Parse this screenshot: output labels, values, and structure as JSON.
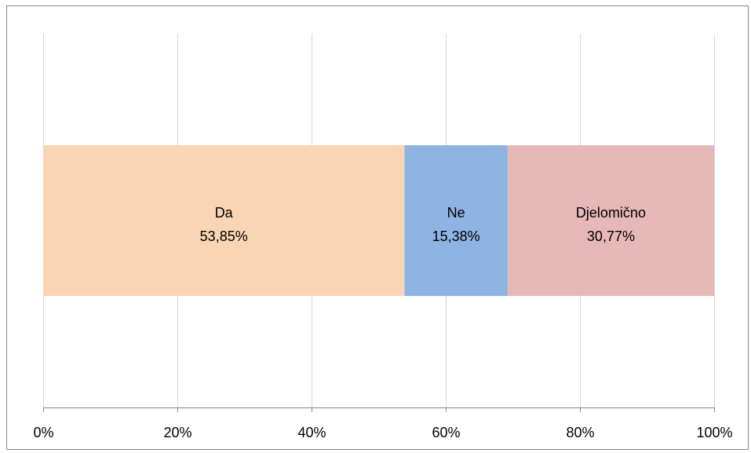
{
  "chart_data": {
    "type": "bar",
    "orientation": "horizontal",
    "stacked": true,
    "percent_stacked": true,
    "categories": [
      ""
    ],
    "series": [
      {
        "name": "Da",
        "values": [
          53.85
        ],
        "data_label": "53,85%",
        "color": "#FAD5B5"
      },
      {
        "name": "Ne",
        "values": [
          15.38
        ],
        "data_label": "15,38%",
        "color": "#8EB4E3"
      },
      {
        "name": "Djelomično",
        "values": [
          30.77
        ],
        "data_label": "30,77%",
        "color": "#E6B9B8"
      }
    ],
    "xaxis": {
      "ticks": [
        0,
        20,
        40,
        60,
        80,
        100
      ],
      "tick_labels": [
        "0%",
        "20%",
        "40%",
        "60%",
        "80%",
        "100%"
      ],
      "xlim": [
        0,
        100
      ],
      "grid": true
    },
    "title": "",
    "xlabel": "",
    "ylabel": "",
    "legend": "none"
  }
}
